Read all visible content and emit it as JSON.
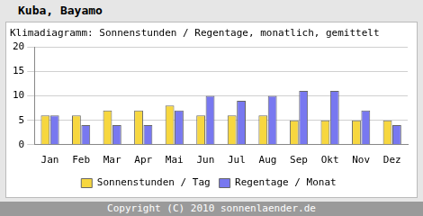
{
  "chart_data": {
    "type": "bar",
    "title": "Kuba, Bayamo",
    "subtitle": "Klimadiagramm: Sonnenstunden / Regentage, monatlich, gemittelt",
    "categories": [
      "Jan",
      "Feb",
      "Mar",
      "Apr",
      "Mai",
      "Jun",
      "Jul",
      "Aug",
      "Sep",
      "Okt",
      "Nov",
      "Dez"
    ],
    "series": [
      {
        "name": "Sonnenstunden / Tag",
        "color": "#f7d73f",
        "values": [
          6,
          6,
          7,
          7,
          8,
          6,
          6,
          6,
          5,
          5,
          5,
          5
        ]
      },
      {
        "name": "Regentage / Monat",
        "color": "#7878f0",
        "values": [
          6,
          4,
          4,
          4,
          7,
          10,
          9,
          10,
          11,
          11,
          7,
          4
        ]
      }
    ],
    "ylim": [
      0,
      20
    ],
    "yticks": [
      0,
      5,
      10,
      15,
      20
    ],
    "grid": true,
    "legend": "bottom",
    "footer": "Copyright (C) 2010 sonnenlaender.de"
  }
}
